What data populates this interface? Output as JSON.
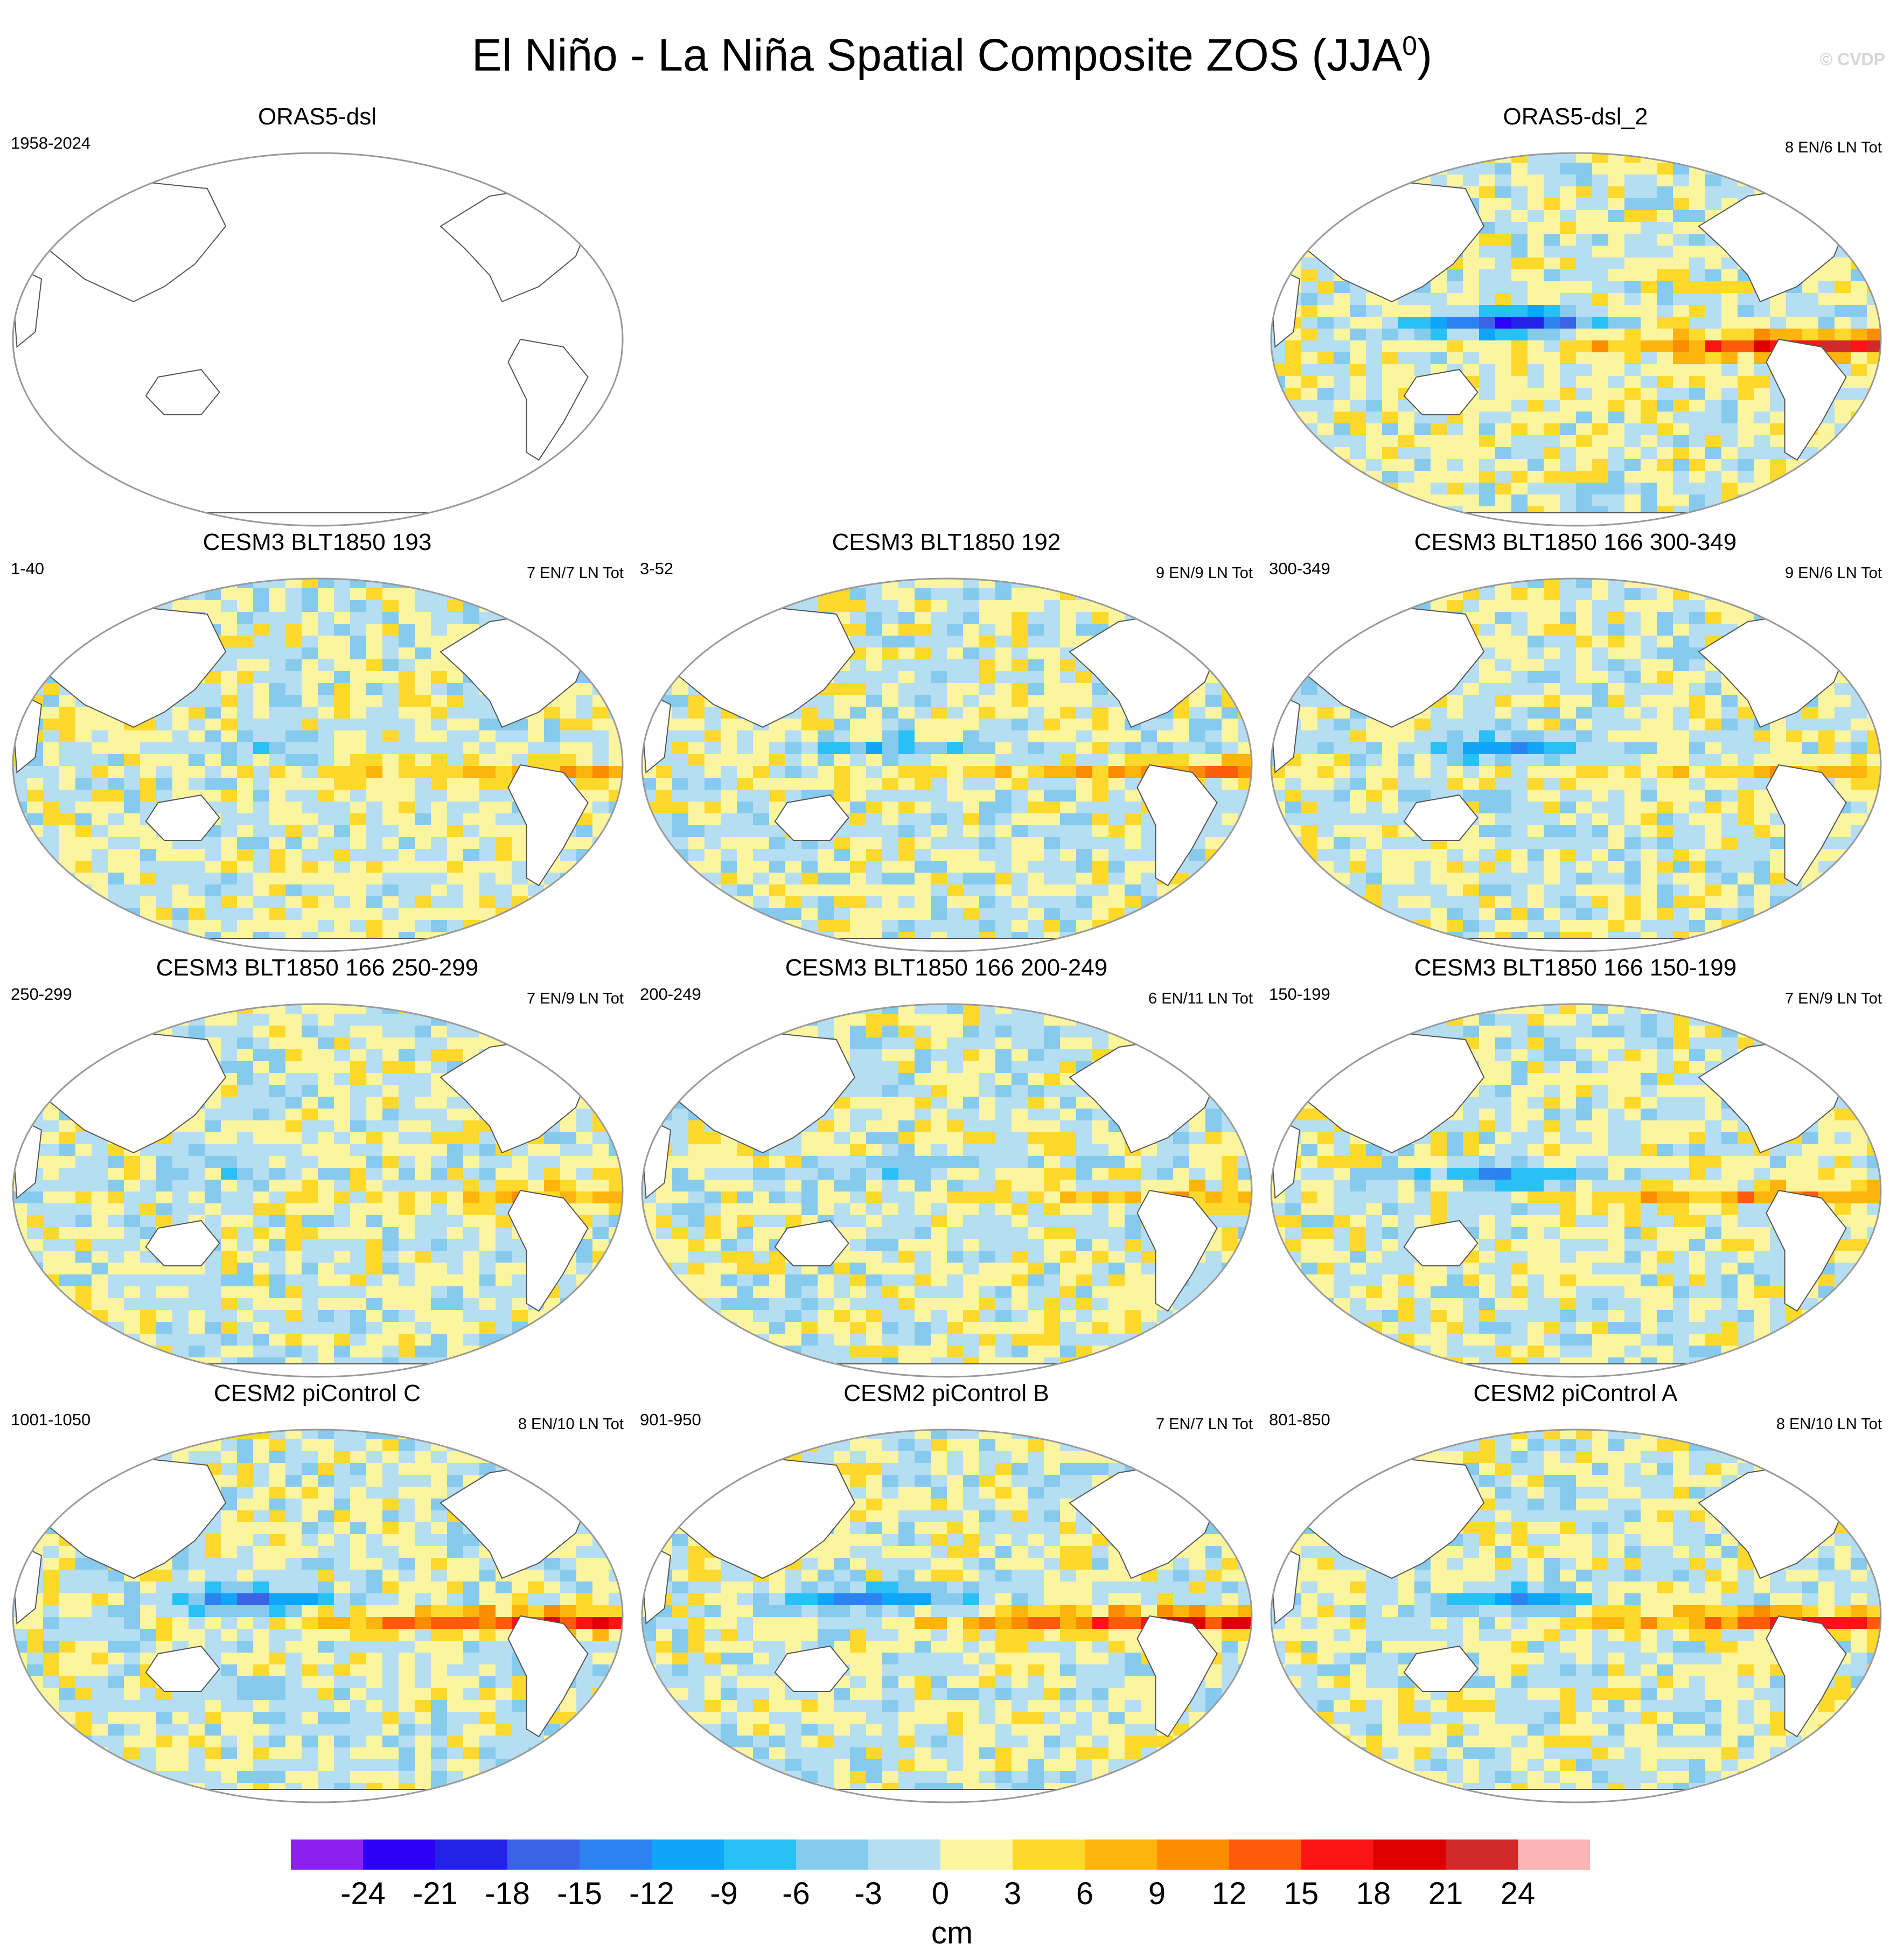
{
  "title": {
    "main": "El Niño - La Niña Spatial Composite ZOS (JJA",
    "superscript": "0",
    "close": ")"
  },
  "watermark": "© CVDP",
  "colorbar": {
    "unit_label": "cm",
    "tick_labels": [
      "-24",
      "-21",
      "-18",
      "-15",
      "-12",
      "-9",
      "-6",
      "-3",
      "0",
      "3",
      "6",
      "9",
      "12",
      "15",
      "18",
      "21",
      "24"
    ],
    "colors": [
      "#8c21ef",
      "#2d00f5",
      "#2323e8",
      "#3b63e6",
      "#2b82f0",
      "#10a5f8",
      "#29c0f6",
      "#86caee",
      "#b5def2",
      "#fbf59f",
      "#fdd92c",
      "#fdb40c",
      "#fd8d00",
      "#fd5d0a",
      "#fc1414",
      "#dc0000",
      "#d02a2a",
      "#fcb4b4"
    ],
    "bounds": [
      -24,
      24
    ]
  },
  "chart_data": [
    {
      "type": "heatmap",
      "title": "ORAS5-dsl",
      "period": "1958-2024",
      "counts": "",
      "panel_position": "top-left",
      "has_data": false
    },
    {
      "type": "heatmap",
      "title": "ORAS5-dsl_2",
      "period": "",
      "counts": "8 EN/6 LN Tot",
      "panel_position": "top-right",
      "has_data": true,
      "eq_pacific_max_cm": 19,
      "w_pacific_min_cm": -23
    },
    {
      "type": "heatmap",
      "title": "CESM3 BLT1850 193",
      "period": "1-40",
      "counts": "7 EN/7 LN Tot",
      "has_data": true,
      "eq_pacific_max_cm": 8,
      "w_pacific_min_cm": -6
    },
    {
      "type": "heatmap",
      "title": "CESM3 BLT1850 192",
      "period": "3-52",
      "counts": "9 EN/9 LN Tot",
      "has_data": true,
      "eq_pacific_max_cm": 10,
      "w_pacific_min_cm": -8
    },
    {
      "type": "heatmap",
      "title": "CESM3 BLT1850 166 300-349",
      "period": "300-349",
      "counts": "9 EN/6 LN Tot",
      "has_data": true,
      "eq_pacific_max_cm": 8,
      "w_pacific_min_cm": -11
    },
    {
      "type": "heatmap",
      "title": "CESM3 BLT1850 166 250-299",
      "period": "250-299",
      "counts": "7 EN/9 LN Tot",
      "has_data": true,
      "eq_pacific_max_cm": 8,
      "w_pacific_min_cm": -5
    },
    {
      "type": "heatmap",
      "title": "CESM3 BLT1850 166 200-249",
      "period": "200-249",
      "counts": "6 EN/11 LN Tot",
      "has_data": true,
      "eq_pacific_max_cm": 6,
      "w_pacific_min_cm": -5
    },
    {
      "type": "heatmap",
      "title": "CESM3 BLT1850 166 150-199",
      "period": "150-199",
      "counts": "7 EN/9 LN Tot",
      "has_data": true,
      "eq_pacific_max_cm": 11,
      "w_pacific_min_cm": -11
    },
    {
      "type": "heatmap",
      "title": "CESM2 piControl C",
      "period": "1001-1050",
      "counts": "8 EN/10 LN Tot",
      "has_data": true,
      "eq_pacific_max_cm": 17,
      "w_pacific_min_cm": -14
    },
    {
      "type": "heatmap",
      "title": "CESM2 piControl B",
      "period": "901-950",
      "counts": "7 EN/7 LN Tot",
      "has_data": true,
      "eq_pacific_max_cm": 17,
      "w_pacific_min_cm": -14
    },
    {
      "type": "heatmap",
      "title": "CESM2 piControl A",
      "period": "801-850",
      "counts": "8 EN/10 LN Tot",
      "has_data": true,
      "eq_pacific_max_cm": 15,
      "w_pacific_min_cm": -13
    }
  ]
}
